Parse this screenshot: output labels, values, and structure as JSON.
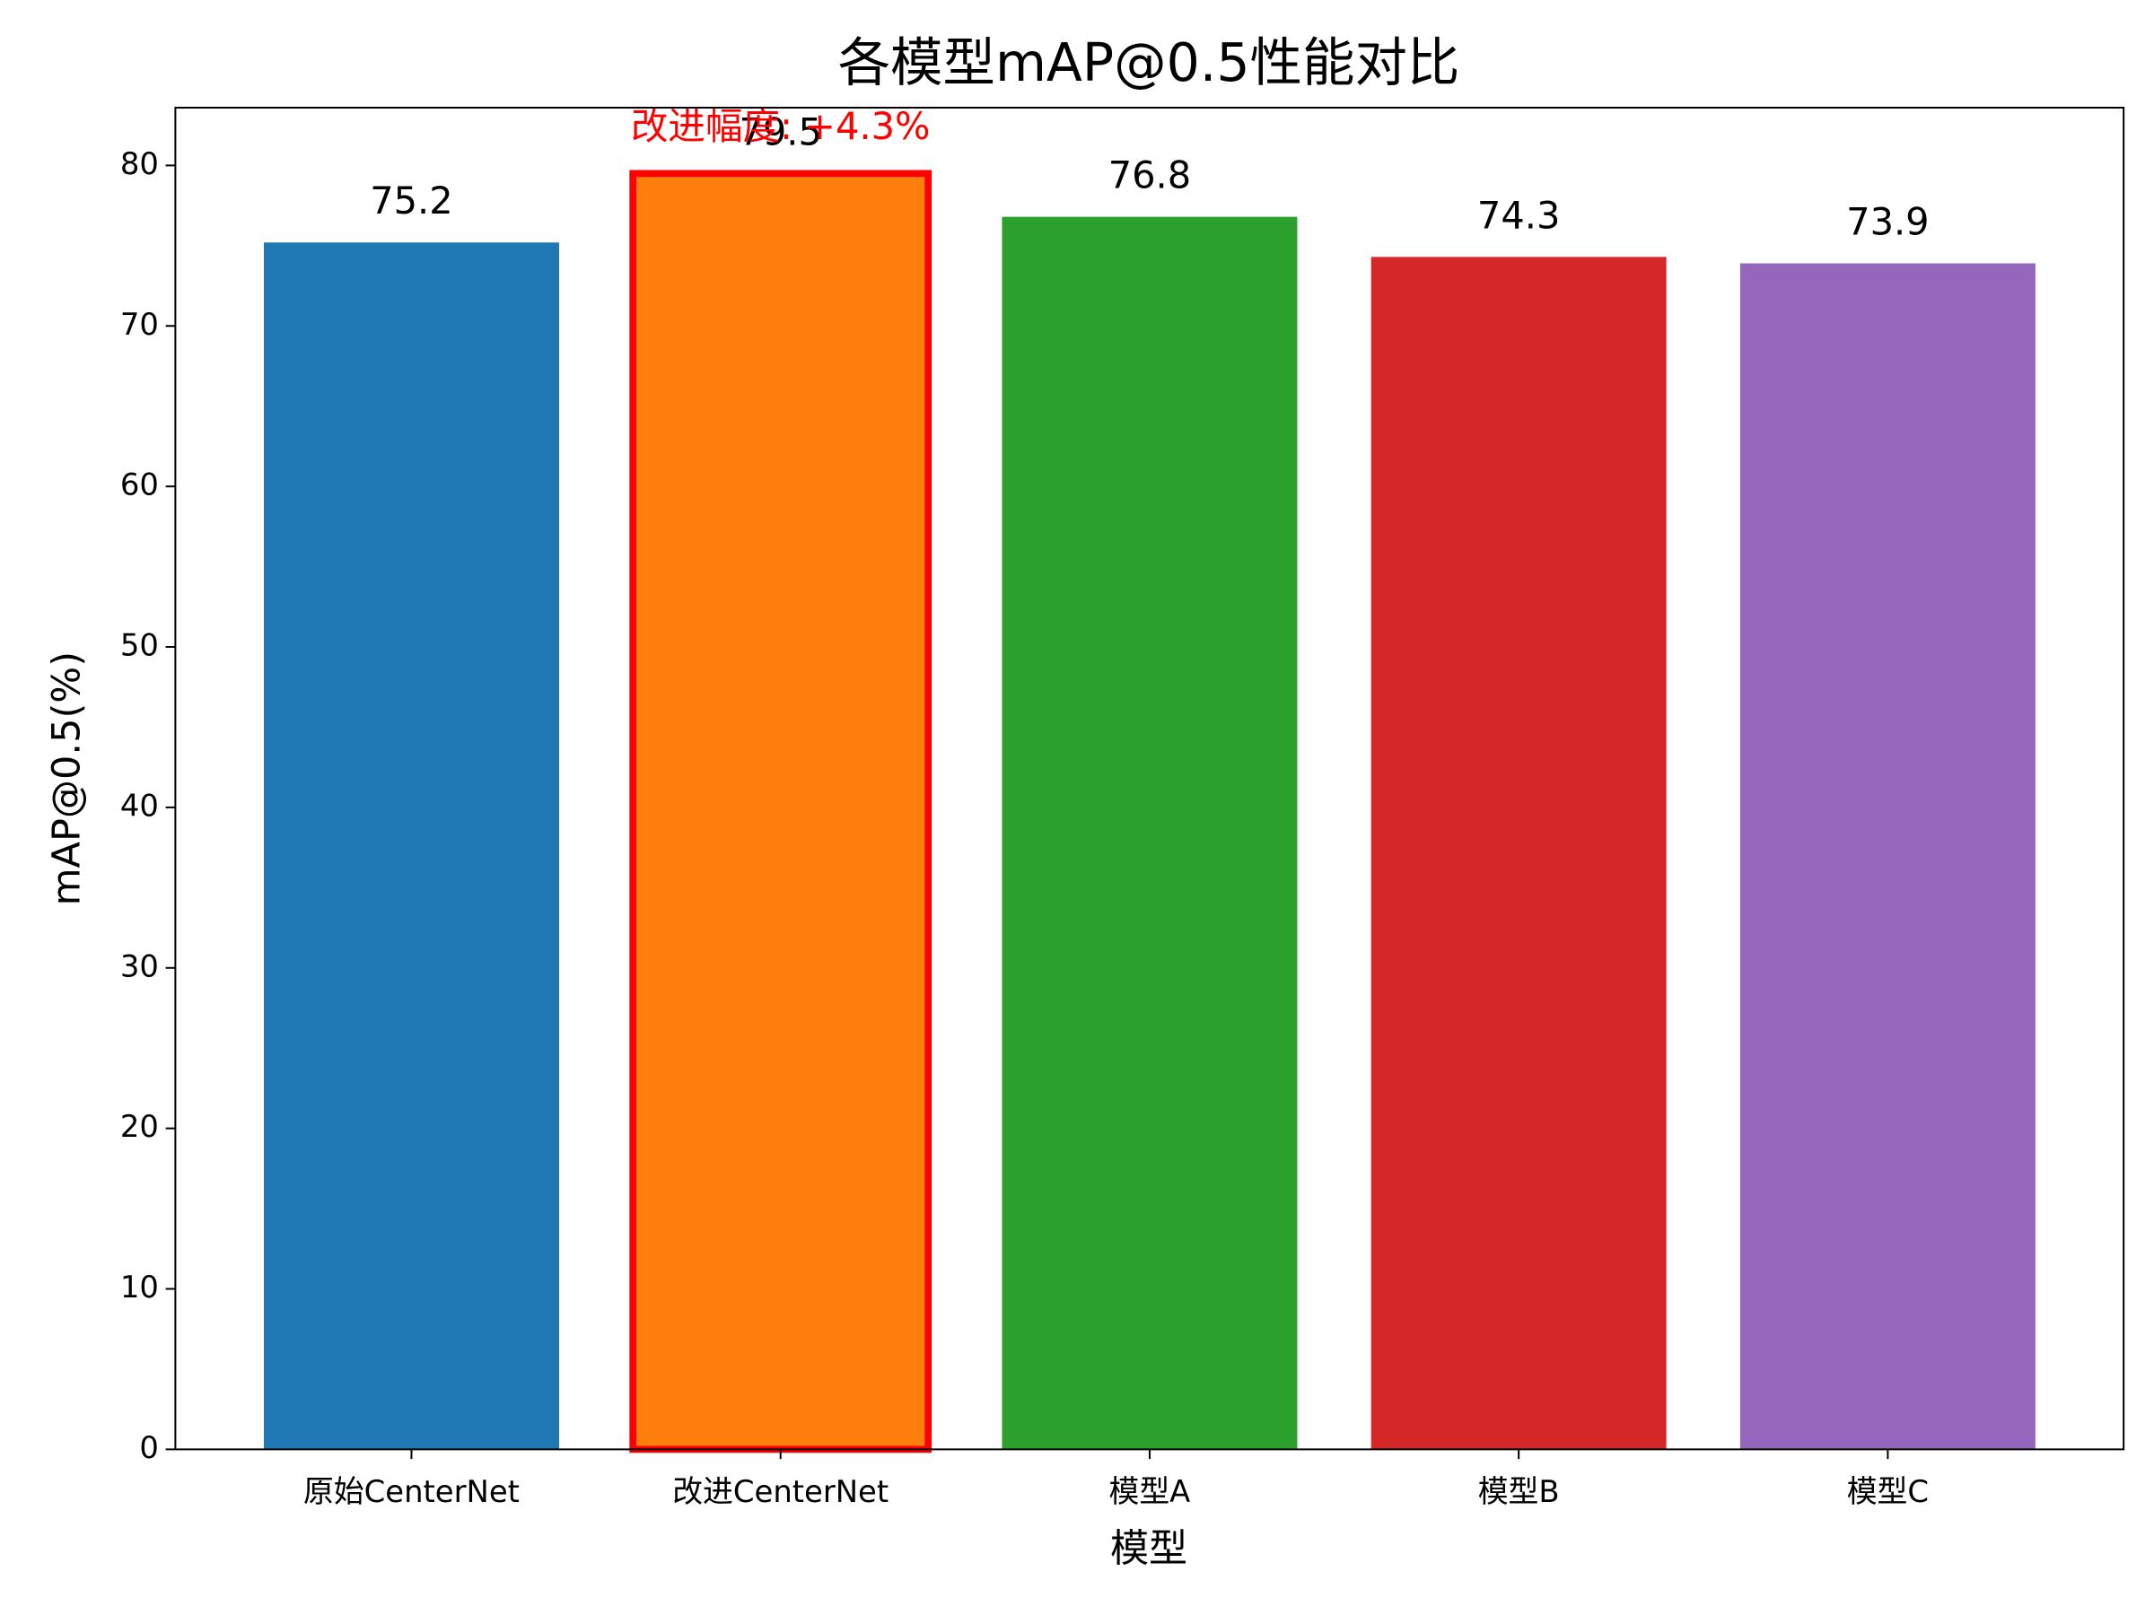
{
  "chart_data": {
    "type": "bar",
    "title": "各模型mAP@0.5性能对比",
    "xlabel": "模型",
    "ylabel": "mAP@0.5(%)",
    "categories": [
      "原始CenterNet",
      "改进CenterNet",
      "模型A",
      "模型B",
      "模型C"
    ],
    "values": [
      75.2,
      79.5,
      76.8,
      74.3,
      73.9
    ],
    "colors": [
      "#1f77b4",
      "#ff7f0e",
      "#2ca02c",
      "#d62728",
      "#9467bd"
    ],
    "edgecolors": [
      "none",
      "#ff0000",
      "none",
      "none",
      "none"
    ],
    "annotation": {
      "text": "改进幅度: +4.3%",
      "color": "#ff0000"
    },
    "ylim": [
      0,
      83.6
    ],
    "yticks": [
      0,
      10,
      20,
      30,
      40,
      50,
      60,
      70,
      80
    ],
    "grid": false
  }
}
